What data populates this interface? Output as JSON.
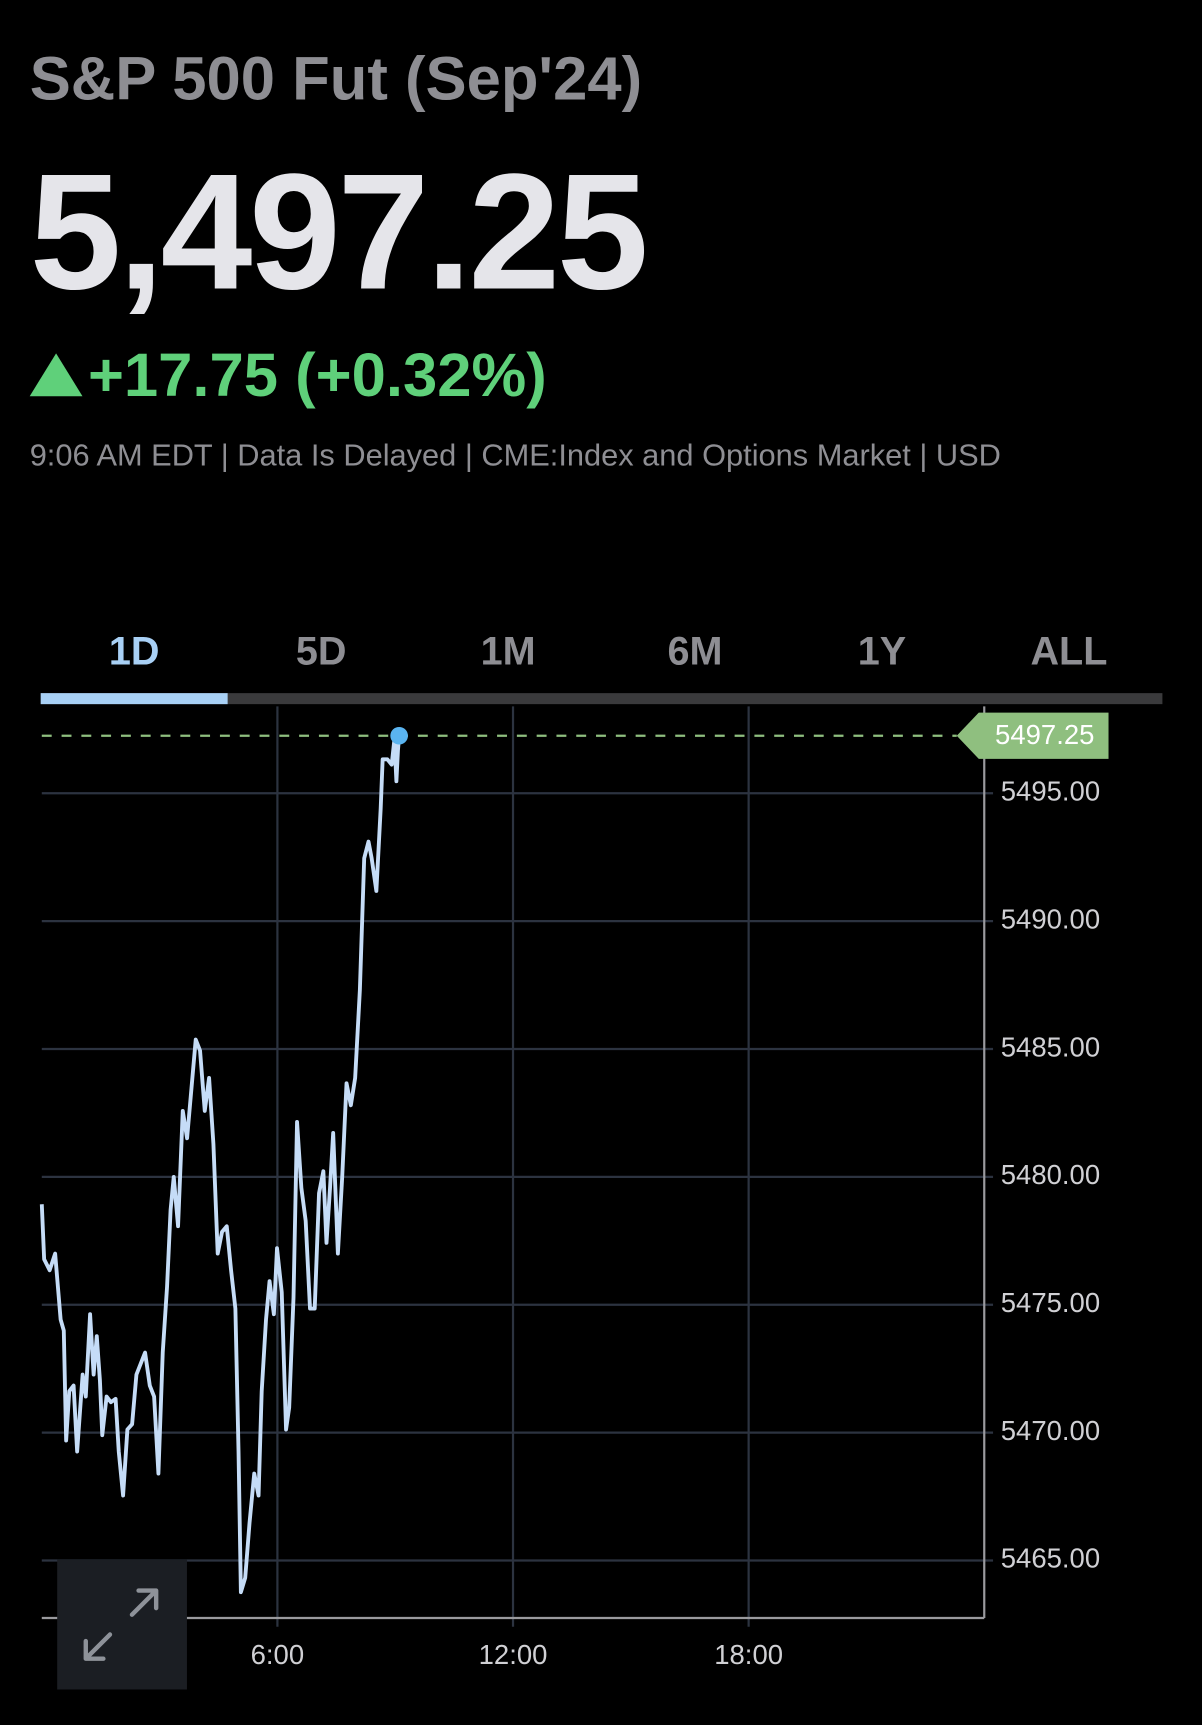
{
  "header": {
    "title": "S&P 500 Fut (Sep'24)",
    "price": "5,497.25",
    "change": "+17.75 (+0.32%)",
    "info": "9:06 AM EDT | Data Is Delayed | CME:Index and Options Market | USD"
  },
  "tabs": [
    "1D",
    "5D",
    "1M",
    "6M",
    "1Y",
    "ALL"
  ],
  "chart_data": {
    "type": "line",
    "color": "#c5dcf7",
    "grid": true,
    "x": [
      0,
      0.06,
      0.2,
      0.34,
      0.48,
      0.56,
      0.62,
      0.7,
      0.81,
      0.9,
      1.04,
      1.12,
      1.23,
      1.32,
      1.4,
      1.48,
      1.54,
      1.65,
      1.76,
      1.88,
      1.96,
      2.07,
      2.18,
      2.3,
      2.41,
      2.52,
      2.63,
      2.75,
      2.86,
      2.97,
      3.08,
      3.19,
      3.28,
      3.36,
      3.47,
      3.59,
      3.7,
      3.81,
      3.92,
      4.03,
      4.15,
      4.26,
      4.37,
      4.48,
      4.59,
      4.71,
      4.82,
      4.93,
      5.01,
      5.07,
      5.18,
      5.29,
      5.41,
      5.52,
      5.6,
      5.71,
      5.8,
      5.91,
      5.99,
      6.11,
      6.22,
      6.3,
      6.41,
      6.5,
      6.61,
      6.72,
      6.83,
      6.95,
      7.06,
      7.17,
      7.25,
      7.34,
      7.42,
      7.54,
      7.65,
      7.76,
      7.87,
      7.98,
      8.1,
      8.21,
      8.32,
      8.4,
      8.52,
      8.63,
      8.68,
      8.8,
      8.91,
      8.98,
      9.03,
      9.07,
      9.1
    ],
    "values": [
      5478.93,
      5476.78,
      5476.35,
      5477.0,
      5474.42,
      5473.99,
      5469.69,
      5471.62,
      5471.84,
      5469.26,
      5472.27,
      5471.41,
      5474.63,
      5472.27,
      5473.77,
      5472.05,
      5469.9,
      5471.41,
      5471.19,
      5471.32,
      5469.26,
      5467.54,
      5470.12,
      5470.33,
      5472.27,
      5472.7,
      5473.13,
      5471.84,
      5471.41,
      5468.4,
      5473.13,
      5475.71,
      5478.71,
      5480.0,
      5478.07,
      5482.58,
      5481.51,
      5483.44,
      5485.37,
      5484.94,
      5482.58,
      5483.87,
      5481.29,
      5477.0,
      5477.85,
      5478.07,
      5476.35,
      5474.85,
      5469.26,
      5463.76,
      5464.32,
      5466.47,
      5468.4,
      5467.54,
      5471.62,
      5474.42,
      5475.92,
      5474.63,
      5477.21,
      5475.49,
      5470.12,
      5470.98,
      5475.28,
      5482.15,
      5479.57,
      5478.28,
      5474.85,
      5474.85,
      5479.36,
      5480.22,
      5477.42,
      5479.57,
      5481.72,
      5477.0,
      5480.0,
      5483.66,
      5482.8,
      5483.87,
      5487.31,
      5492.46,
      5493.11,
      5492.46,
      5491.18,
      5494.4,
      5496.33,
      5496.33,
      5496.12,
      5497.11,
      5495.47,
      5496.68,
      5497.25
    ],
    "xlim": [
      0,
      24
    ],
    "xticks": [
      {
        "value": 6,
        "label": "6:00"
      },
      {
        "value": 12,
        "label": "12:00"
      },
      {
        "value": 18,
        "label": "18:00"
      }
    ],
    "ylim": [
      5462.75,
      5498.4
    ],
    "yticks": [
      {
        "value": 5465,
        "label": "5465.00"
      },
      {
        "value": 5470,
        "label": "5470.00"
      },
      {
        "value": 5475,
        "label": "5475.00"
      },
      {
        "value": 5480,
        "label": "5480.00"
      },
      {
        "value": 5485,
        "label": "5485.00"
      },
      {
        "value": 5490,
        "label": "5490.00"
      },
      {
        "value": 5495,
        "label": "5495.00"
      }
    ]
  }
}
